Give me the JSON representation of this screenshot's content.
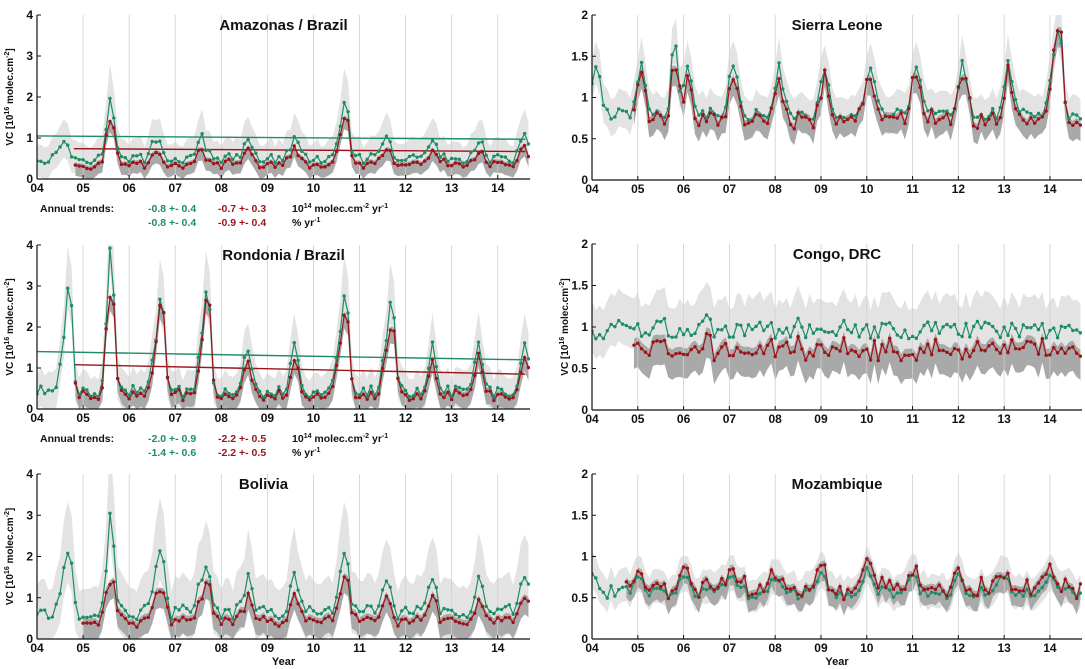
{
  "colors": {
    "green": "#1e8c66",
    "red": "#9b1419",
    "band_light": "#e3e3e3",
    "band_dark": "#a9a9a9"
  },
  "chart_data": [
    {
      "id": "p-amazonas",
      "type": "line",
      "title": "Amazonas / Brazil",
      "ylabel_pre": "VC [10",
      "ylabel_sup": "16",
      "ylabel_post": " molec.cm",
      "ylabel_sup2": "-2",
      "ylabel_end": "]",
      "xlabel": "",
      "xlim": [
        2004.0,
        2014.7
      ],
      "ylim": [
        0,
        4
      ],
      "yticks": [
        0,
        1,
        2,
        3,
        4
      ],
      "ytick_labels": [
        "0",
        "1",
        "2",
        "3",
        "4"
      ],
      "xticks": [
        2004,
        2005,
        2006,
        2007,
        2008,
        2009,
        2010,
        2011,
        2012,
        2013,
        2014
      ],
      "xtick_labels": [
        "04",
        "05",
        "06",
        "07",
        "08",
        "09",
        "10",
        "11",
        "12",
        "13",
        "14"
      ],
      "base": 0.62,
      "amp": 0.5,
      "peak_month": 8,
      "noise": 0.12,
      "ratio": 0.72,
      "green_start": 2004.0,
      "red_start": 2004.8,
      "band_light": 0.55,
      "band_dark": 0.2,
      "trend_green": [
        1.05,
        0.97
      ],
      "trend_red": [
        0.74,
        0.67
      ],
      "peaks": [
        {
          "x": 2005.6,
          "g": 2.0,
          "r": 1.4
        },
        {
          "x": 2010.7,
          "g": 2.0,
          "r": 1.5
        }
      ],
      "trends": {
        "label": "Annual trends:",
        "g1": "-0.8 +- 0.4",
        "r1": "-0.7 +- 0.3",
        "u1_pre": "10",
        "u1_sup": "14",
        "u1_mid": " molec.cm",
        "u1_sup2": "-2",
        "u1_mid2": " yr",
        "u1_sup3": "-1",
        "g2": "-0.8 +- 0.4",
        "r2": "-0.9 +- 0.4",
        "u2_pre": "% yr",
        "u2_sup": "-1"
      }
    },
    {
      "id": "p-rondonia",
      "type": "line",
      "title": "Rondonia / Brazil",
      "ylabel_pre": "VC [10",
      "ylabel_sup": "16",
      "ylabel_post": " molec.cm",
      "ylabel_sup2": "-2",
      "ylabel_end": "]",
      "xlabel": "",
      "xlim": [
        2004.0,
        2014.7
      ],
      "ylim": [
        0,
        4
      ],
      "yticks": [
        0,
        1,
        2,
        3,
        4
      ],
      "ytick_labels": [
        "0",
        "1",
        "2",
        "3",
        "4"
      ],
      "xticks": [
        2004,
        2005,
        2006,
        2007,
        2008,
        2009,
        2010,
        2011,
        2012,
        2013,
        2014
      ],
      "xtick_labels": [
        "04",
        "05",
        "06",
        "07",
        "08",
        "09",
        "10",
        "11",
        "12",
        "13",
        "14"
      ],
      "base": 0.7,
      "amp": 1.1,
      "peak_month": 8,
      "noise": 0.15,
      "ratio": 0.78,
      "green_start": 2004.0,
      "red_start": 2004.8,
      "band_light": 0.7,
      "band_dark": 0.25,
      "trend_green": [
        1.4,
        1.2
      ],
      "trend_red": [
        1.08,
        0.85
      ],
      "peaks": [
        {
          "x": 2004.7,
          "g": 3.2,
          "r": 1.2
        },
        {
          "x": 2005.6,
          "g": 4.0,
          "r": 2.7
        },
        {
          "x": 2006.7,
          "g": 2.9,
          "r": 2.6
        },
        {
          "x": 2007.7,
          "g": 3.1,
          "r": 2.7
        },
        {
          "x": 2010.7,
          "g": 3.0,
          "r": 2.3
        },
        {
          "x": 2011.7,
          "g": 2.8,
          "r": 1.9
        }
      ],
      "trends": {
        "label": "Annual trends:",
        "g1": "-2.0 +- 0.9",
        "r1": "-2.2 +- 0.5",
        "u1_pre": "10",
        "u1_sup": "14",
        "u1_mid": " molec.cm",
        "u1_sup2": "-2",
        "u1_mid2": " yr",
        "u1_sup3": "-1",
        "g2": "-1.4 +- 0.6",
        "r2": "-2.2 +- 0.5",
        "u2_pre": "% yr",
        "u2_sup": "-1"
      }
    },
    {
      "id": "p-bolivia",
      "type": "line",
      "title": "Bolivia",
      "ylabel_pre": "VC [10",
      "ylabel_sup": "16",
      "ylabel_post": " molec.cm",
      "ylabel_sup2": "-2",
      "ylabel_end": "]",
      "xlabel": "Year",
      "xlim": [
        2004.0,
        2014.7
      ],
      "ylim": [
        0,
        4
      ],
      "yticks": [
        0,
        1,
        2,
        3,
        4
      ],
      "ytick_labels": [
        "0",
        "1",
        "2",
        "3",
        "4"
      ],
      "xticks": [
        2004,
        2005,
        2006,
        2007,
        2008,
        2009,
        2010,
        2011,
        2012,
        2013,
        2014
      ],
      "xtick_labels": [
        "04",
        "05",
        "06",
        "07",
        "08",
        "09",
        "10",
        "11",
        "12",
        "13",
        "14"
      ],
      "base": 0.85,
      "amp": 0.8,
      "peak_month": 8,
      "noise": 0.18,
      "ratio": 0.68,
      "green_start": 2004.0,
      "red_start": 2005.0,
      "band_light": 1.0,
      "band_dark": 0.3,
      "trend_green": null,
      "trend_red": null,
      "peaks": [
        {
          "x": 2004.7,
          "g": 2.2,
          "r": 1.0
        },
        {
          "x": 2005.6,
          "g": 3.1,
          "r": 1.3
        },
        {
          "x": 2006.7,
          "g": 2.3,
          "r": 1.1
        },
        {
          "x": 2007.7,
          "g": 1.8,
          "r": 1.4
        },
        {
          "x": 2010.7,
          "g": 2.2,
          "r": 1.5
        }
      ],
      "trends": null
    },
    {
      "id": "p-sierra",
      "type": "line",
      "title": "Sierra Leone",
      "ylabel_pre": "",
      "ylabel_sup": "",
      "ylabel_post": "",
      "ylabel_sup2": "",
      "ylabel_end": "",
      "xlabel": "",
      "xlim": [
        2004.0,
        2014.7
      ],
      "ylim": [
        0,
        2
      ],
      "yticks": [
        0,
        0.5,
        1,
        1.5,
        2
      ],
      "ytick_labels": [
        "0",
        "0.5",
        "1",
        "1.5",
        "2"
      ],
      "xticks": [
        2004,
        2005,
        2006,
        2007,
        2008,
        2009,
        2010,
        2011,
        2012,
        2013,
        2014
      ],
      "xtick_labels": [
        "04",
        "05",
        "06",
        "07",
        "08",
        "09",
        "10",
        "11",
        "12",
        "13",
        "14"
      ],
      "base": 0.95,
      "amp": 0.6,
      "peak_month": 2,
      "noise": 0.08,
      "ratio": 0.93,
      "green_start": 2004.0,
      "red_start": 2004.9,
      "band_light": 0.3,
      "band_dark": 0.15,
      "trend_green": null,
      "trend_red": null,
      "peaks": [
        {
          "x": 2005.8,
          "g": 1.75,
          "r": 1.3
        },
        {
          "x": 2014.2,
          "g": 1.9,
          "r": 1.85
        }
      ],
      "trends": null
    },
    {
      "id": "p-congo",
      "type": "line",
      "title": "Congo, DRC",
      "ylabel_pre": "VC [10",
      "ylabel_sup": "16",
      "ylabel_post": " molec.cm",
      "ylabel_sup2": "-2",
      "ylabel_end": "]",
      "xlabel": "",
      "xlim": [
        2004.0,
        2014.7
      ],
      "ylim": [
        0,
        2
      ],
      "yticks": [
        0,
        0.5,
        1,
        1.5,
        2
      ],
      "ytick_labels": [
        "0",
        "0.5",
        "1",
        "1.5",
        "2"
      ],
      "xticks": [
        2004,
        2005,
        2006,
        2007,
        2008,
        2009,
        2010,
        2011,
        2012,
        2013,
        2014
      ],
      "xtick_labels": [
        "04",
        "05",
        "06",
        "07",
        "08",
        "09",
        "10",
        "11",
        "12",
        "13",
        "14"
      ],
      "base": 0.98,
      "amp": 0.1,
      "peak_month": 7,
      "noise": 0.1,
      "ratio": 0.76,
      "green_start": 2004.0,
      "red_start": 2004.9,
      "band_light": 0.35,
      "band_dark": 0.22,
      "trend_green": null,
      "trend_red": null,
      "peaks": [],
      "trends": null
    },
    {
      "id": "p-mozambique",
      "type": "line",
      "title": "Mozambique",
      "ylabel_pre": "",
      "ylabel_sup": "",
      "ylabel_post": "",
      "ylabel_sup2": "",
      "ylabel_end": "",
      "xlabel": "Year",
      "xlim": [
        2004.0,
        2014.7
      ],
      "ylim": [
        0,
        2
      ],
      "yticks": [
        0,
        0.5,
        1,
        1.5,
        2
      ],
      "ytick_labels": [
        "0",
        "0.5",
        "1",
        "1.5",
        "2"
      ],
      "xticks": [
        2004,
        2005,
        2006,
        2007,
        2008,
        2009,
        2010,
        2011,
        2012,
        2013,
        2014
      ],
      "xtick_labels": [
        "04",
        "05",
        "06",
        "07",
        "08",
        "09",
        "10",
        "11",
        "12",
        "13",
        "14"
      ],
      "base": 0.62,
      "amp": 0.22,
      "peak_month": 1,
      "noise": 0.08,
      "ratio": 1.1,
      "green_start": 2004.0,
      "red_start": 2004.7,
      "band_light": 0.25,
      "band_dark": 0.15,
      "trend_green": null,
      "trend_red": null,
      "peaks": [],
      "trends": null
    }
  ]
}
